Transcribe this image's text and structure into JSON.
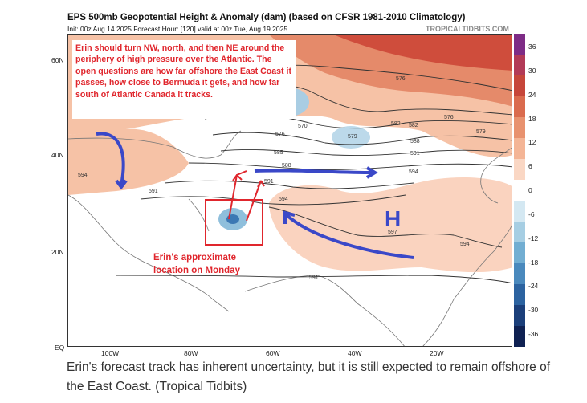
{
  "figure": {
    "title": "EPS 500mb Geopotential Height & Anomaly (dam) (based on CFSR 1981-2010 Climatology)",
    "init_line": "Init: 00z Aug 14 2025   Forecast Hour: [120]   valid at 00z Tue, Aug 19 2025",
    "credit": "TROPICALTIDBITS.COM",
    "lat_labels": [
      "60N",
      "40N",
      "20N",
      "EQ"
    ],
    "lon_labels": [
      "100W",
      "80W",
      "60W",
      "40W",
      "20W"
    ],
    "contour_labels": [
      "576",
      "576",
      "570",
      "576",
      "579",
      "582",
      "585",
      "588",
      "591",
      "594",
      "591",
      "594",
      "597",
      "594",
      "591",
      "588",
      "582",
      "579",
      "591",
      "594"
    ],
    "high_label": "H",
    "colorbar": {
      "ticks": [
        "36",
        "30",
        "24",
        "18",
        "12",
        "6",
        "0",
        "-6",
        "-12",
        "-18",
        "-24",
        "-30",
        "-36"
      ],
      "colors": [
        "#7e2c86",
        "#b23a57",
        "#c6463a",
        "#da6b4e",
        "#e8926f",
        "#f4b596",
        "#fad7c4",
        "#ffffff",
        "#d4e8f2",
        "#a6cee3",
        "#72aed2",
        "#4a89bd",
        "#2c63a0",
        "#1b3f7a",
        "#0f2152"
      ]
    }
  },
  "annotations": {
    "forecast_note": "Erin should turn NW, north, and then NE around the periphery of high pressure over the Atlantic. The open questions are how far offshore the East Coast it passes, how close to Bermuda it gets, and how far south of Atlantic Canada it tracks.",
    "location_note": "Erin's approximate location on Monday"
  },
  "caption": "Erin's forecast track has inherent uncertainty, but it is still expected to remain offshore of the East Coast. (Tropical Tidbits)"
}
